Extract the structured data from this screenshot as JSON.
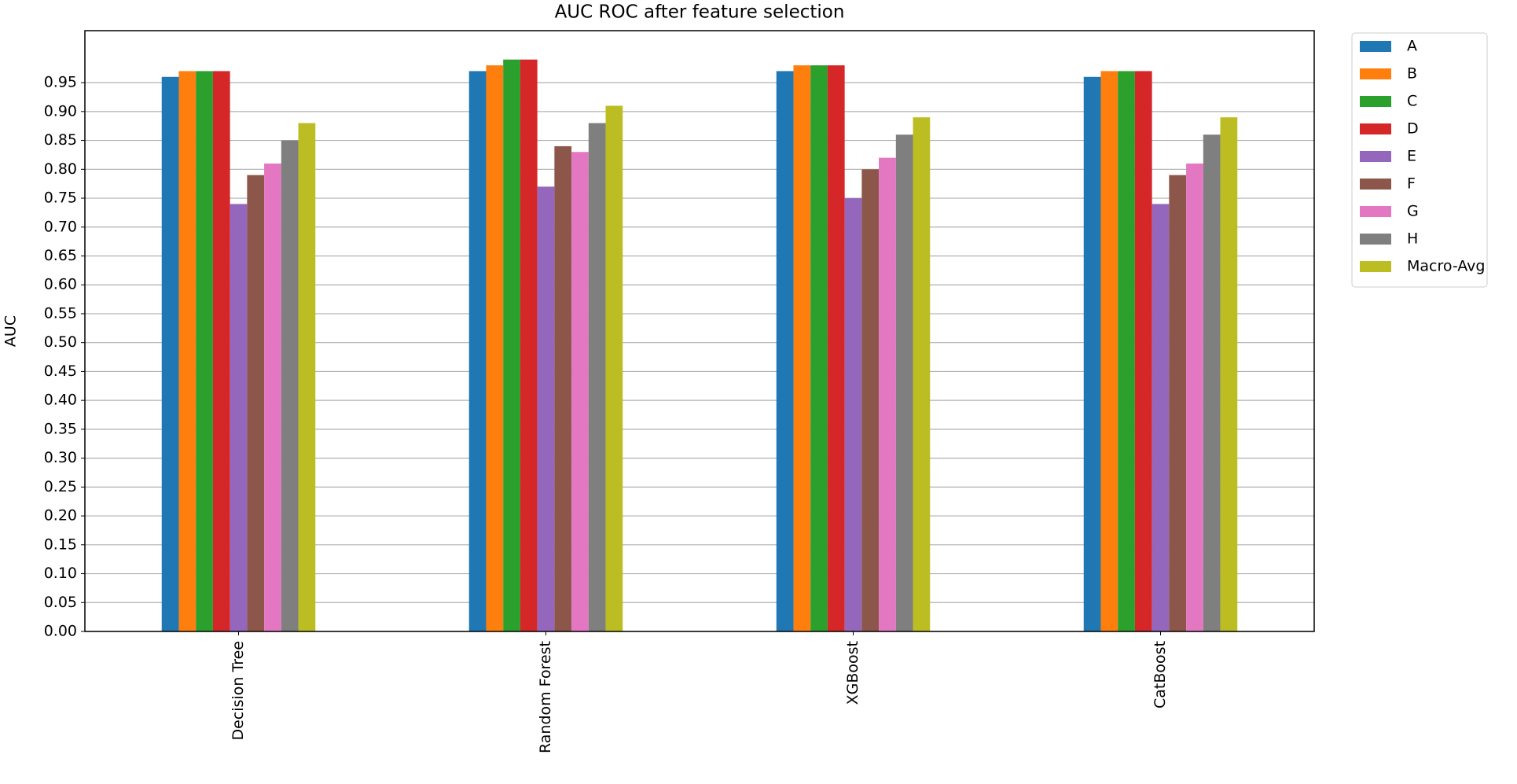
{
  "chart_data": {
    "type": "bar",
    "title": "AUC ROC after feature selection",
    "y_label": "AUC",
    "categories": [
      "Decision Tree",
      "Random Forest",
      "XGBoost",
      "CatBoost"
    ],
    "series": [
      {
        "name": "A",
        "color": "#1f77b4",
        "values": [
          0.96,
          0.97,
          0.97,
          0.96
        ]
      },
      {
        "name": "B",
        "color": "#ff7f0e",
        "values": [
          0.97,
          0.98,
          0.98,
          0.97
        ]
      },
      {
        "name": "C",
        "color": "#2ca02c",
        "values": [
          0.97,
          0.99,
          0.98,
          0.97
        ]
      },
      {
        "name": "D",
        "color": "#d62728",
        "values": [
          0.97,
          0.99,
          0.98,
          0.97
        ]
      },
      {
        "name": "E",
        "color": "#9467bd",
        "values": [
          0.74,
          0.77,
          0.75,
          0.74
        ]
      },
      {
        "name": "F",
        "color": "#8c564b",
        "values": [
          0.79,
          0.84,
          0.8,
          0.79
        ]
      },
      {
        "name": "G",
        "color": "#e377c2",
        "values": [
          0.81,
          0.83,
          0.82,
          0.81
        ]
      },
      {
        "name": "H",
        "color": "#7f7f7f",
        "values": [
          0.85,
          0.88,
          0.86,
          0.86
        ]
      },
      {
        "name": "Macro-Avg",
        "color": "#bcbd22",
        "values": [
          0.88,
          0.91,
          0.89,
          0.89
        ]
      }
    ],
    "ylim": [
      0,
      1.04
    ],
    "yticks": [
      {
        "value": 0,
        "label": "0.00"
      },
      {
        "value": 0.05,
        "label": "0.05"
      },
      {
        "value": 0.1,
        "label": "0.10"
      },
      {
        "value": 0.15,
        "label": "0.15"
      },
      {
        "value": 0.2,
        "label": "0.20"
      },
      {
        "value": 0.25,
        "label": "0.25"
      },
      {
        "value": 0.3,
        "label": "0.30"
      },
      {
        "value": 0.35,
        "label": "0.35"
      },
      {
        "value": 0.4,
        "label": "0.40"
      },
      {
        "value": 0.45,
        "label": "0.45"
      },
      {
        "value": 0.5,
        "label": "0.50"
      },
      {
        "value": 0.55,
        "label": "0.55"
      },
      {
        "value": 0.6,
        "label": "0.60"
      },
      {
        "value": 0.65,
        "label": "0.65"
      },
      {
        "value": 0.7,
        "label": "0.70"
      },
      {
        "value": 0.75,
        "label": "0.75"
      },
      {
        "value": 0.8,
        "label": "0.80"
      },
      {
        "value": 0.85,
        "label": "0.85"
      },
      {
        "value": 0.9,
        "label": "0.90"
      },
      {
        "value": 0.95,
        "label": "0.95"
      }
    ],
    "grid": true,
    "legend": "outside right"
  }
}
